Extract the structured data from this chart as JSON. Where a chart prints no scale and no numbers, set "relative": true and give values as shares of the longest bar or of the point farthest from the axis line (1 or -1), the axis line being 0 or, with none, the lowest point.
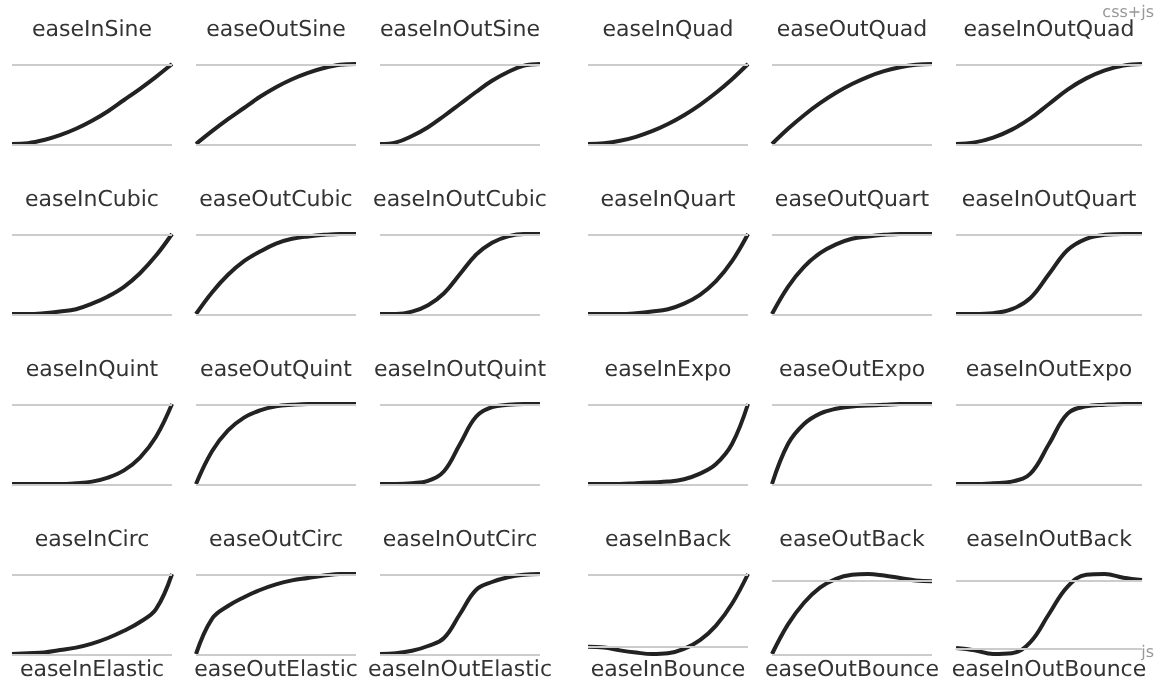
{
  "chart_data": [
    {
      "type": "line",
      "relative": true,
      "title": "easeInSine",
      "categories": [
        null,
        null,
        null,
        null,
        null,
        null,
        null,
        null,
        null,
        null,
        null
      ],
      "values": [
        0,
        0.01,
        0.05,
        0.11,
        0.19,
        0.29,
        0.41,
        0.55,
        0.69,
        0.84,
        1
      ],
      "color": "#222222",
      "marker": "none",
      "ref_lines": [
        {
          "axis": "y",
          "value": 0,
          "color": "#cccccc"
        },
        {
          "axis": "y",
          "value": 1,
          "color": "#cccccc"
        }
      ]
    },
    {
      "type": "line",
      "relative": true,
      "title": "easeOutSine",
      "categories": [
        null,
        null,
        null,
        null,
        null,
        null,
        null,
        null,
        null,
        null,
        null
      ],
      "values": [
        0,
        0.16,
        0.31,
        0.45,
        0.59,
        0.71,
        0.81,
        0.89,
        0.95,
        0.99,
        1
      ],
      "color": "#222222",
      "marker": "none",
      "ref_lines": [
        {
          "axis": "y",
          "value": 0,
          "color": "#cccccc"
        },
        {
          "axis": "y",
          "value": 1,
          "color": "#cccccc"
        }
      ]
    },
    {
      "type": "line",
      "relative": true,
      "title": "easeInOutSine",
      "categories": [
        null,
        null,
        null,
        null,
        null,
        null,
        null,
        null,
        null,
        null,
        null
      ],
      "values": [
        0,
        0.02,
        0.1,
        0.21,
        0.35,
        0.5,
        0.65,
        0.79,
        0.9,
        0.98,
        1
      ],
      "color": "#222222",
      "marker": "none",
      "ref_lines": [
        {
          "axis": "y",
          "value": 0,
          "color": "#cccccc"
        },
        {
          "axis": "y",
          "value": 1,
          "color": "#cccccc"
        }
      ]
    },
    {
      "type": "line",
      "relative": true,
      "title": "easeInQuad",
      "categories": [
        null,
        null,
        null,
        null,
        null,
        null,
        null,
        null,
        null,
        null,
        null
      ],
      "values": [
        0,
        0.01,
        0.04,
        0.09,
        0.16,
        0.25,
        0.36,
        0.49,
        0.64,
        0.81,
        1
      ],
      "color": "#222222",
      "marker": "none",
      "ref_lines": [
        {
          "axis": "y",
          "value": 0,
          "color": "#cccccc"
        },
        {
          "axis": "y",
          "value": 1,
          "color": "#cccccc"
        }
      ]
    },
    {
      "type": "line",
      "relative": true,
      "title": "easeOutQuad",
      "categories": [
        null,
        null,
        null,
        null,
        null,
        null,
        null,
        null,
        null,
        null,
        null
      ],
      "values": [
        0,
        0.19,
        0.36,
        0.51,
        0.64,
        0.75,
        0.84,
        0.91,
        0.96,
        0.99,
        1
      ],
      "color": "#222222",
      "marker": "none",
      "ref_lines": [
        {
          "axis": "y",
          "value": 0,
          "color": "#cccccc"
        },
        {
          "axis": "y",
          "value": 1,
          "color": "#cccccc"
        }
      ]
    },
    {
      "type": "line",
      "relative": true,
      "title": "easeInOutQuad",
      "annotations": [
        "css+js"
      ],
      "categories": [
        null,
        null,
        null,
        null,
        null,
        null,
        null,
        null,
        null,
        null,
        null
      ],
      "values": [
        0,
        0.02,
        0.08,
        0.18,
        0.32,
        0.5,
        0.68,
        0.82,
        0.92,
        0.98,
        1
      ],
      "color": "#222222",
      "marker": "none",
      "ref_lines": [
        {
          "axis": "y",
          "value": 0,
          "color": "#cccccc"
        },
        {
          "axis": "y",
          "value": 1,
          "color": "#cccccc"
        }
      ]
    },
    {
      "type": "line",
      "relative": true,
      "title": "easeInCubic",
      "categories": [
        null,
        null,
        null,
        null,
        null,
        null,
        null,
        null,
        null,
        null,
        null
      ],
      "values": [
        0,
        0,
        0.01,
        0.03,
        0.06,
        0.13,
        0.22,
        0.34,
        0.51,
        0.73,
        1
      ],
      "color": "#222222",
      "marker": "none",
      "ref_lines": [
        {
          "axis": "y",
          "value": 0,
          "color": "#cccccc"
        },
        {
          "axis": "y",
          "value": 1,
          "color": "#cccccc"
        }
      ]
    },
    {
      "type": "line",
      "relative": true,
      "title": "easeOutCubic",
      "categories": [
        null,
        null,
        null,
        null,
        null,
        null,
        null,
        null,
        null,
        null,
        null
      ],
      "values": [
        0,
        0.27,
        0.49,
        0.66,
        0.78,
        0.88,
        0.94,
        0.97,
        0.99,
        1,
        1
      ],
      "color": "#222222",
      "marker": "none",
      "ref_lines": [
        {
          "axis": "y",
          "value": 0,
          "color": "#cccccc"
        },
        {
          "axis": "y",
          "value": 1,
          "color": "#cccccc"
        }
      ]
    },
    {
      "type": "line",
      "relative": true,
      "title": "easeInOutCubic",
      "categories": [
        null,
        null,
        null,
        null,
        null,
        null,
        null,
        null,
        null,
        null,
        null
      ],
      "values": [
        0,
        0,
        0.03,
        0.11,
        0.26,
        0.5,
        0.74,
        0.89,
        0.97,
        1,
        1
      ],
      "color": "#222222",
      "marker": "none",
      "ref_lines": [
        {
          "axis": "y",
          "value": 0,
          "color": "#cccccc"
        },
        {
          "axis": "y",
          "value": 1,
          "color": "#cccccc"
        }
      ]
    },
    {
      "type": "line",
      "relative": true,
      "title": "easeInQuart",
      "categories": [
        null,
        null,
        null,
        null,
        null,
        null,
        null,
        null,
        null,
        null,
        null
      ],
      "values": [
        0,
        0,
        0,
        0.01,
        0.03,
        0.06,
        0.13,
        0.24,
        0.41,
        0.66,
        1
      ],
      "color": "#222222",
      "marker": "none",
      "ref_lines": [
        {
          "axis": "y",
          "value": 0,
          "color": "#cccccc"
        },
        {
          "axis": "y",
          "value": 1,
          "color": "#cccccc"
        }
      ]
    },
    {
      "type": "line",
      "relative": true,
      "title": "easeOutQuart",
      "categories": [
        null,
        null,
        null,
        null,
        null,
        null,
        null,
        null,
        null,
        null,
        null
      ],
      "values": [
        0,
        0.34,
        0.59,
        0.76,
        0.87,
        0.94,
        0.97,
        0.99,
        1,
        1,
        1
      ],
      "color": "#222222",
      "marker": "none",
      "ref_lines": [
        {
          "axis": "y",
          "value": 0,
          "color": "#cccccc"
        },
        {
          "axis": "y",
          "value": 1,
          "color": "#cccccc"
        }
      ]
    },
    {
      "type": "line",
      "relative": true,
      "title": "easeInOutQuart",
      "categories": [
        null,
        null,
        null,
        null,
        null,
        null,
        null,
        null,
        null,
        null,
        null
      ],
      "values": [
        0,
        0,
        0.01,
        0.06,
        0.2,
        0.5,
        0.8,
        0.94,
        0.99,
        1,
        1
      ],
      "color": "#222222",
      "marker": "none",
      "ref_lines": [
        {
          "axis": "y",
          "value": 0,
          "color": "#cccccc"
        },
        {
          "axis": "y",
          "value": 1,
          "color": "#cccccc"
        }
      ]
    },
    {
      "type": "line",
      "relative": true,
      "title": "easeInQuint",
      "categories": [
        null,
        null,
        null,
        null,
        null,
        null,
        null,
        null,
        null,
        null,
        null
      ],
      "values": [
        0,
        0,
        0,
        0,
        0.01,
        0.03,
        0.08,
        0.17,
        0.33,
        0.59,
        1
      ],
      "color": "#222222",
      "marker": "none",
      "ref_lines": [
        {
          "axis": "y",
          "value": 0,
          "color": "#cccccc"
        },
        {
          "axis": "y",
          "value": 1,
          "color": "#cccccc"
        }
      ]
    },
    {
      "type": "line",
      "relative": true,
      "title": "easeOutQuint",
      "categories": [
        null,
        null,
        null,
        null,
        null,
        null,
        null,
        null,
        null,
        null,
        null
      ],
      "values": [
        0,
        0.41,
        0.67,
        0.83,
        0.92,
        0.97,
        0.99,
        1,
        1,
        1,
        1
      ],
      "color": "#222222",
      "marker": "none",
      "ref_lines": [
        {
          "axis": "y",
          "value": 0,
          "color": "#cccccc"
        },
        {
          "axis": "y",
          "value": 1,
          "color": "#cccccc"
        }
      ]
    },
    {
      "type": "line",
      "relative": true,
      "title": "easeInOutQuint",
      "categories": [
        null,
        null,
        null,
        null,
        null,
        null,
        null,
        null,
        null,
        null,
        null
      ],
      "values": [
        0,
        0,
        0.01,
        0.04,
        0.16,
        0.5,
        0.84,
        0.96,
        0.99,
        1,
        1
      ],
      "color": "#222222",
      "marker": "none",
      "ref_lines": [
        {
          "axis": "y",
          "value": 0,
          "color": "#cccccc"
        },
        {
          "axis": "y",
          "value": 1,
          "color": "#cccccc"
        }
      ]
    },
    {
      "type": "line",
      "relative": true,
      "title": "easeInExpo",
      "categories": [
        null,
        null,
        null,
        null,
        null,
        null,
        null,
        null,
        null,
        null,
        null
      ],
      "values": [
        0,
        0,
        0,
        0.01,
        0.02,
        0.03,
        0.06,
        0.13,
        0.25,
        0.5,
        1
      ],
      "color": "#222222",
      "marker": "none",
      "ref_lines": [
        {
          "axis": "y",
          "value": 0,
          "color": "#cccccc"
        },
        {
          "axis": "y",
          "value": 1,
          "color": "#cccccc"
        }
      ]
    },
    {
      "type": "line",
      "relative": true,
      "title": "easeOutExpo",
      "categories": [
        null,
        null,
        null,
        null,
        null,
        null,
        null,
        null,
        null,
        null,
        null
      ],
      "values": [
        0,
        0.5,
        0.75,
        0.88,
        0.94,
        0.97,
        0.98,
        0.99,
        1,
        1,
        1
      ],
      "color": "#222222",
      "marker": "none",
      "ref_lines": [
        {
          "axis": "y",
          "value": 0,
          "color": "#cccccc"
        },
        {
          "axis": "y",
          "value": 1,
          "color": "#cccccc"
        }
      ]
    },
    {
      "type": "line",
      "relative": true,
      "title": "easeInOutExpo",
      "categories": [
        null,
        null,
        null,
        null,
        null,
        null,
        null,
        null,
        null,
        null,
        null
      ],
      "values": [
        0,
        0,
        0.01,
        0.03,
        0.13,
        0.5,
        0.88,
        0.97,
        0.99,
        1,
        1
      ],
      "color": "#222222",
      "marker": "none",
      "ref_lines": [
        {
          "axis": "y",
          "value": 0,
          "color": "#cccccc"
        },
        {
          "axis": "y",
          "value": 1,
          "color": "#cccccc"
        }
      ]
    },
    {
      "type": "line",
      "relative": true,
      "title": "easeInCirc",
      "categories": [
        null,
        null,
        null,
        null,
        null,
        null,
        null,
        null,
        null,
        null,
        null
      ],
      "values": [
        0,
        0.01,
        0.02,
        0.05,
        0.08,
        0.13,
        0.2,
        0.29,
        0.4,
        0.56,
        1
      ],
      "color": "#222222",
      "marker": "none",
      "ref_lines": [
        {
          "axis": "y",
          "value": 0,
          "color": "#cccccc"
        },
        {
          "axis": "y",
          "value": 1,
          "color": "#cccccc"
        }
      ]
    },
    {
      "type": "line",
      "relative": true,
      "title": "easeOutCirc",
      "categories": [
        null,
        null,
        null,
        null,
        null,
        null,
        null,
        null,
        null,
        null,
        null
      ],
      "values": [
        0,
        0.44,
        0.6,
        0.71,
        0.8,
        0.87,
        0.92,
        0.95,
        0.98,
        1,
        1
      ],
      "color": "#222222",
      "marker": "none",
      "ref_lines": [
        {
          "axis": "y",
          "value": 0,
          "color": "#cccccc"
        },
        {
          "axis": "y",
          "value": 1,
          "color": "#cccccc"
        }
      ]
    },
    {
      "type": "line",
      "relative": true,
      "title": "easeInOutCirc",
      "categories": [
        null,
        null,
        null,
        null,
        null,
        null,
        null,
        null,
        null,
        null,
        null
      ],
      "values": [
        0,
        0.01,
        0.04,
        0.1,
        0.2,
        0.5,
        0.8,
        0.9,
        0.96,
        0.99,
        1
      ],
      "color": "#222222",
      "marker": "none",
      "ref_lines": [
        {
          "axis": "y",
          "value": 0,
          "color": "#cccccc"
        },
        {
          "axis": "y",
          "value": 1,
          "color": "#cccccc"
        }
      ]
    },
    {
      "type": "line",
      "relative": true,
      "title": "easeInBack",
      "categories": [
        null,
        null,
        null,
        null,
        null,
        null,
        null,
        null,
        null,
        null,
        null
      ],
      "values": [
        0,
        -0.01,
        -0.05,
        -0.08,
        -0.1,
        -0.09,
        -0.03,
        0.09,
        0.29,
        0.59,
        1
      ],
      "color": "#222222",
      "marker": "none",
      "ref_lines": [
        {
          "axis": "y",
          "value": 0,
          "color": "#cccccc"
        },
        {
          "axis": "y",
          "value": 1,
          "color": "#cccccc"
        }
      ]
    },
    {
      "type": "line",
      "relative": true,
      "title": "easeOutBack",
      "categories": [
        null,
        null,
        null,
        null,
        null,
        null,
        null,
        null,
        null,
        null,
        null
      ],
      "values": [
        0,
        0.37,
        0.64,
        0.83,
        0.94,
        0.99,
        1,
        0.98,
        0.95,
        0.92,
        0.91
      ],
      "color": "#222222",
      "marker": "none",
      "ref_lines": [
        {
          "axis": "y",
          "value": 0,
          "color": "#cccccc"
        },
        {
          "axis": "y",
          "value": 0.91,
          "color": "#cccccc"
        }
      ]
    },
    {
      "type": "line",
      "relative": true,
      "title": "easeInOutBack",
      "categories": [
        null,
        null,
        null,
        null,
        null,
        null,
        null,
        null,
        null,
        null,
        null
      ],
      "values": [
        0,
        -0.03,
        -0.08,
        -0.07,
        0.08,
        0.46,
        0.83,
        0.99,
        1,
        0.95,
        0.92
      ],
      "color": "#222222",
      "marker": "none",
      "ref_lines": [
        {
          "axis": "y",
          "value": 0,
          "color": "#cccccc"
        },
        {
          "axis": "y",
          "value": 0.92,
          "color": "#cccccc"
        }
      ]
    },
    {
      "type": "other",
      "title": "easeInElastic"
    },
    {
      "type": "other",
      "title": "easeOutElastic"
    },
    {
      "type": "other",
      "title": "easeInOutElastic"
    },
    {
      "type": "other",
      "title": "easeInBounce"
    },
    {
      "type": "other",
      "title": "easeOutBounce"
    },
    {
      "type": "other",
      "title": "easeInOutBounce",
      "annotations": [
        "js"
      ]
    }
  ]
}
